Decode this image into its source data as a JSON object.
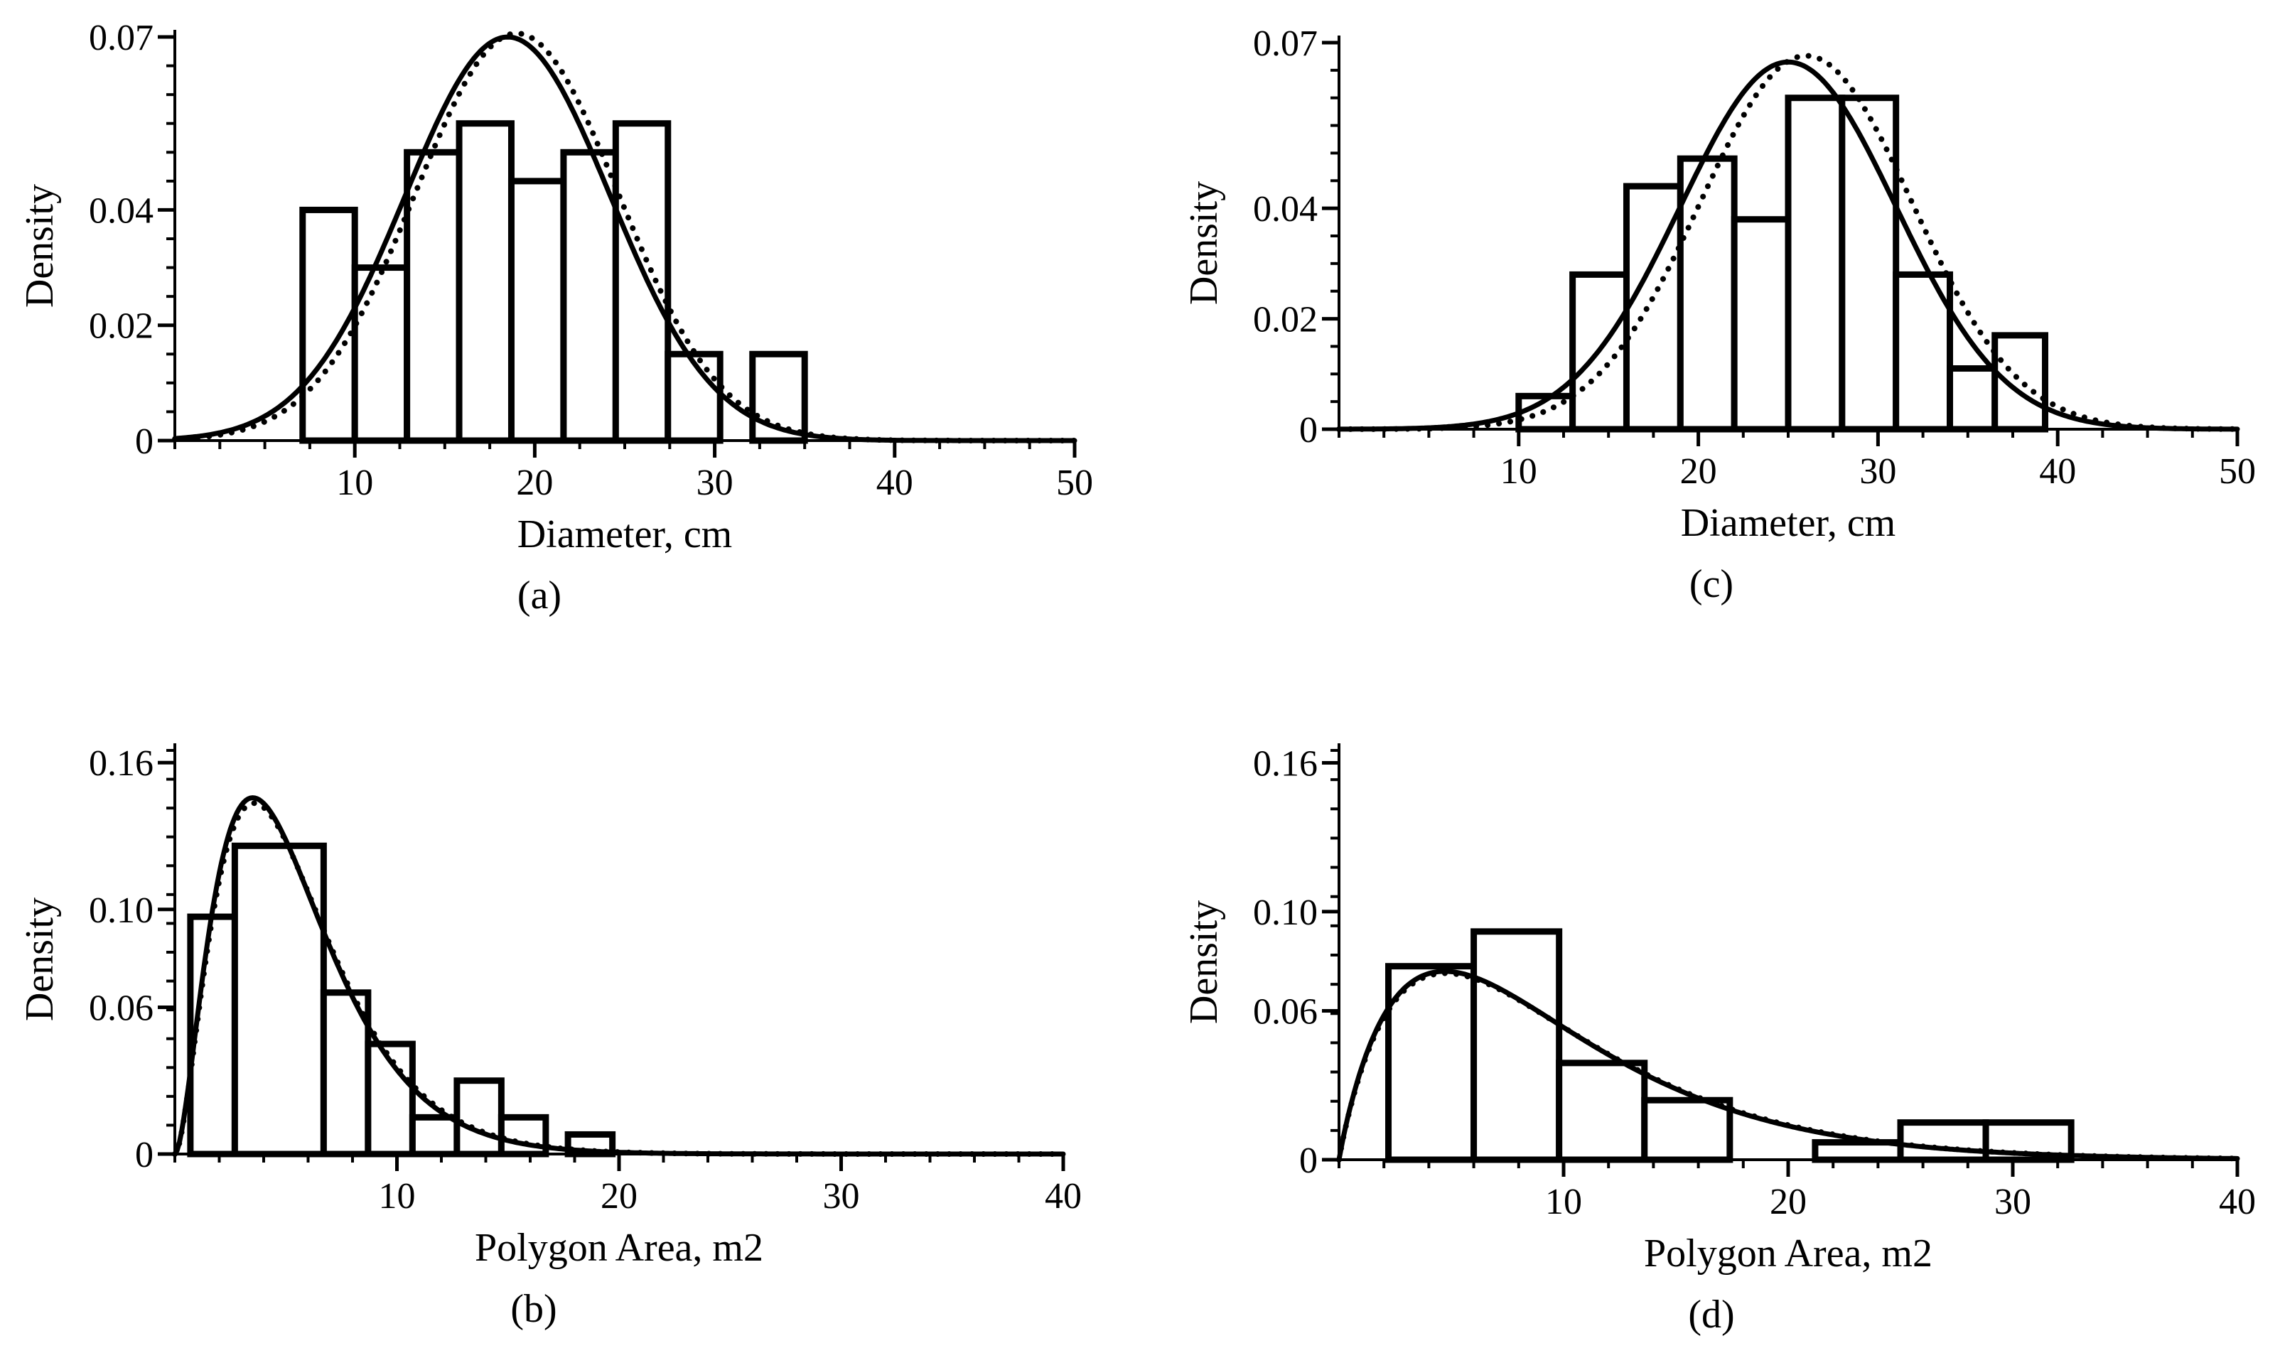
{
  "chart_data": [
    {
      "type": "bar",
      "panel_label": "(a)",
      "xlabel": "Diameter, cm",
      "ylabel": "Density",
      "xlim": [
        0,
        50
      ],
      "ylim": [
        0,
        0.07
      ],
      "x_ticks": [
        10,
        20,
        30,
        40,
        50
      ],
      "y_ticks": [
        0,
        0.02,
        0.04,
        0.07
      ],
      "y_tick_labels": [
        "0",
        "0.02",
        "0.04",
        "0.07"
      ],
      "bins": [
        {
          "x0": 7.1,
          "x1": 10.0,
          "value": 0.04
        },
        {
          "x0": 10.0,
          "x1": 12.9,
          "value": 0.03
        },
        {
          "x0": 12.9,
          "x1": 15.8,
          "value": 0.05
        },
        {
          "x0": 15.8,
          "x1": 18.7,
          "value": 0.055
        },
        {
          "x0": 18.7,
          "x1": 21.6,
          "value": 0.045
        },
        {
          "x0": 21.6,
          "x1": 24.5,
          "value": 0.05
        },
        {
          "x0": 24.5,
          "x1": 27.4,
          "value": 0.055
        },
        {
          "x0": 27.4,
          "x1": 30.3,
          "value": 0.015
        },
        {
          "x0": 32.1,
          "x1": 35.0,
          "value": 0.015
        }
      ],
      "curves": [
        {
          "name": "solid fit",
          "style": "solid",
          "dist": "normal",
          "mu": 18.5,
          "sigma": 5.7
        },
        {
          "name": "dotted fit",
          "style": "dotted",
          "dist": "normal",
          "mu": 19.0,
          "sigma": 5.65
        }
      ]
    },
    {
      "type": "bar",
      "panel_label": "(b)",
      "xlabel": "Polygon Area, m2",
      "ylabel": "Density",
      "xlim": [
        0,
        40
      ],
      "ylim": [
        0,
        0.165
      ],
      "x_ticks": [
        10,
        20,
        30,
        40
      ],
      "y_ticks": [
        0,
        0.06,
        0.1,
        0.16
      ],
      "y_tick_labels": [
        "0",
        "0.06",
        "0.10",
        "0.16"
      ],
      "bins": [
        {
          "x0": 0.7,
          "x1": 2.7,
          "value": 0.097
        },
        {
          "x0": 2.7,
          "x1": 6.7,
          "value": 0.126
        },
        {
          "x0": 6.7,
          "x1": 8.7,
          "value": 0.066
        },
        {
          "x0": 8.7,
          "x1": 10.7,
          "value": 0.045
        },
        {
          "x0": 10.7,
          "x1": 12.7,
          "value": 0.015
        },
        {
          "x0": 12.7,
          "x1": 14.7,
          "value": 0.03
        },
        {
          "x0": 14.7,
          "x1": 16.7,
          "value": 0.015
        },
        {
          "x0": 17.7,
          "x1": 19.7,
          "value": 0.008
        }
      ],
      "curves": [
        {
          "name": "solid fit",
          "style": "solid",
          "dist": "gamma",
          "shape": 2.8,
          "scale": 1.95
        },
        {
          "name": "dotted fit",
          "style": "dotted",
          "dist": "gamma",
          "shape": 2.8,
          "scale": 1.98
        }
      ]
    },
    {
      "type": "bar",
      "panel_label": "(c)",
      "xlabel": "Diameter, cm",
      "ylabel": "Density",
      "xlim": [
        0,
        50
      ],
      "ylim": [
        0,
        0.07
      ],
      "x_ticks": [
        10,
        20,
        30,
        40,
        50
      ],
      "y_ticks": [
        0,
        0.02,
        0.04,
        0.07
      ],
      "y_tick_labels": [
        "0",
        "0.02",
        "0.04",
        "0.07"
      ],
      "bins": [
        {
          "x0": 10.0,
          "x1": 13.0,
          "value": 0.006
        },
        {
          "x0": 13.0,
          "x1": 16.0,
          "value": 0.028
        },
        {
          "x0": 16.0,
          "x1": 19.0,
          "value": 0.044
        },
        {
          "x0": 19.0,
          "x1": 22.0,
          "value": 0.049
        },
        {
          "x0": 22.0,
          "x1": 25.0,
          "value": 0.038
        },
        {
          "x0": 25.0,
          "x1": 28.0,
          "value": 0.06
        },
        {
          "x0": 28.0,
          "x1": 31.0,
          "value": 0.06
        },
        {
          "x0": 31.0,
          "x1": 34.0,
          "value": 0.028
        },
        {
          "x0": 34.0,
          "x1": 36.5,
          "value": 0.011
        },
        {
          "x0": 36.5,
          "x1": 39.3,
          "value": 0.017
        }
      ],
      "curves": [
        {
          "name": "solid fit",
          "style": "solid",
          "dist": "normal",
          "mu": 25.0,
          "sigma": 6.0
        },
        {
          "name": "dotted fit",
          "style": "dotted",
          "dist": "normal",
          "mu": 26.0,
          "sigma": 5.9
        }
      ]
    },
    {
      "type": "bar",
      "panel_label": "(d)",
      "xlabel": "Polygon Area, m2",
      "ylabel": "Density",
      "xlim": [
        0,
        40
      ],
      "ylim": [
        0,
        0.165
      ],
      "x_ticks": [
        10,
        20,
        30,
        40
      ],
      "y_ticks": [
        0,
        0.06,
        0.1,
        0.16
      ],
      "y_tick_labels": [
        "0",
        "0.06",
        "0.10",
        "0.16"
      ],
      "bins": [
        {
          "x0": 2.2,
          "x1": 6.0,
          "value": 0.078
        },
        {
          "x0": 6.0,
          "x1": 9.8,
          "value": 0.092
        },
        {
          "x0": 9.8,
          "x1": 13.6,
          "value": 0.039
        },
        {
          "x0": 13.6,
          "x1": 17.4,
          "value": 0.024
        },
        {
          "x0": 21.2,
          "x1": 25.0,
          "value": 0.007
        },
        {
          "x0": 25.0,
          "x1": 28.8,
          "value": 0.015
        },
        {
          "x0": 28.8,
          "x1": 32.6,
          "value": 0.015
        }
      ],
      "curves": [
        {
          "name": "solid fit",
          "style": "solid",
          "dist": "gamma",
          "shape": 1.95,
          "scale": 4.95
        },
        {
          "name": "dotted fit",
          "style": "dotted",
          "dist": "gamma",
          "shape": 1.95,
          "scale": 5.0
        }
      ]
    }
  ]
}
